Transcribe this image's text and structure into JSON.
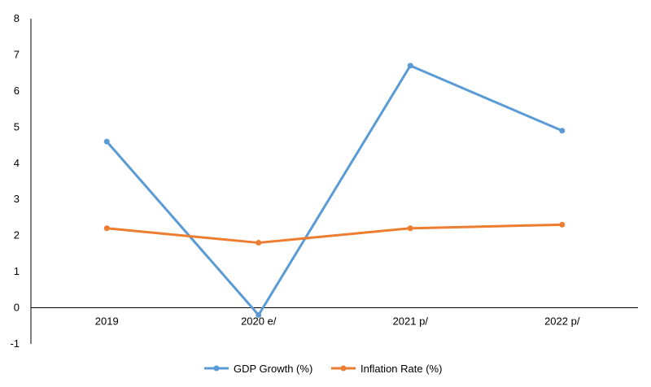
{
  "chart_data": {
    "type": "line",
    "title": "",
    "xlabel": "",
    "ylabel": "",
    "categories": [
      "2019",
      "2020 e/",
      "2021 p/",
      "2022 p/"
    ],
    "ylim": [
      -1,
      8
    ],
    "yticks": [
      -1,
      0,
      1,
      2,
      3,
      4,
      5,
      6,
      7,
      8
    ],
    "grid": false,
    "legend_position": "bottom",
    "series": [
      {
        "name": "GDP Growth (%)",
        "color": "#5B9BD5",
        "values": [
          4.6,
          -0.2,
          6.7,
          4.9
        ]
      },
      {
        "name": "Inflation Rate (%)",
        "color": "#ED7D31",
        "values": [
          2.2,
          1.8,
          2.2,
          2.3
        ]
      }
    ]
  }
}
